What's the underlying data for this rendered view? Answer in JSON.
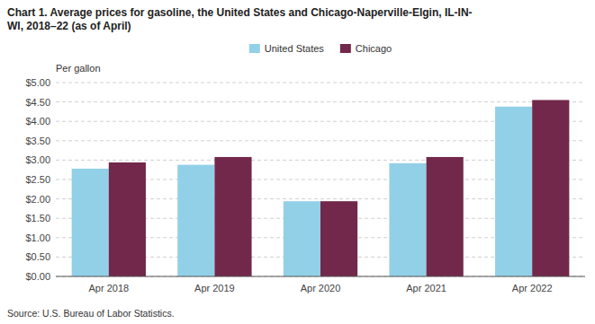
{
  "chart_data": {
    "type": "bar",
    "title": "Chart 1. Average prices for gasoline, the United States and Chicago-Naperville-Elgin, IL-IN-\nWI, 2018–22 (as of April)",
    "ylabel": "Per gallon",
    "annotations": [
      "Source: U.S. Bureau of Labor Statistics."
    ],
    "categories": [
      "Apr 2018",
      "Apr 2019",
      "Apr 2020",
      "Apr 2021",
      "Apr 2022"
    ],
    "series": [
      {
        "name": "United States",
        "color": "#92D0E8",
        "values": [
          2.78,
          2.88,
          1.94,
          2.92,
          4.38
        ]
      },
      {
        "name": "Chicago",
        "color": "#72284A",
        "values": [
          2.94,
          3.08,
          1.94,
          3.08,
          4.55
        ]
      }
    ],
    "ylim": [
      0,
      5.0
    ],
    "yticks": [
      {
        "value": 0.0,
        "label": "$0.00"
      },
      {
        "value": 0.5,
        "label": "$0.50"
      },
      {
        "value": 1.0,
        "label": "$1.00"
      },
      {
        "value": 1.5,
        "label": "$1.50"
      },
      {
        "value": 2.0,
        "label": "$2.00"
      },
      {
        "value": 2.5,
        "label": "$2.50"
      },
      {
        "value": 3.0,
        "label": "$3.00"
      },
      {
        "value": 3.5,
        "label": "$3.50"
      },
      {
        "value": 4.0,
        "label": "$4.00"
      },
      {
        "value": 4.5,
        "label": "$4.50"
      },
      {
        "value": 5.0,
        "label": "$5.00"
      }
    ],
    "grid": true,
    "legend": "top"
  }
}
